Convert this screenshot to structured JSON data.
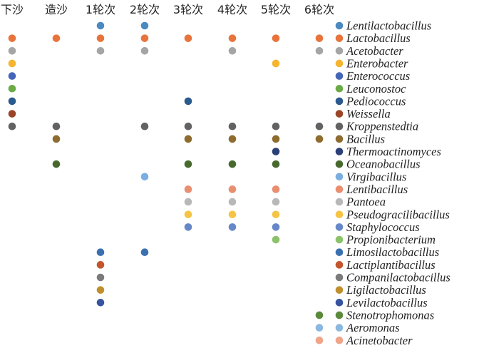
{
  "chart_data": {
    "type": "scatter",
    "title": "",
    "categories": [
      "下沙",
      "造沙",
      "1轮次",
      "2轮次",
      "3轮次",
      "4轮次",
      "5轮次",
      "6轮次"
    ],
    "series": [
      {
        "name": "Lentilactobacillus",
        "color": "#4a8ac0",
        "present": [
          "1轮次",
          "2轮次"
        ]
      },
      {
        "name": "Lactobacillus",
        "color": "#e8743b",
        "present": [
          "下沙",
          "造沙",
          "1轮次",
          "2轮次",
          "3轮次",
          "4轮次",
          "5轮次",
          "6轮次"
        ]
      },
      {
        "name": "Acetobacter",
        "color": "#a5a5a5",
        "present": [
          "下沙",
          "1轮次",
          "2轮次",
          "4轮次",
          "6轮次"
        ]
      },
      {
        "name": "Enterobacter",
        "color": "#f5b530",
        "present": [
          "下沙",
          "5轮次"
        ]
      },
      {
        "name": "Enterococcus",
        "color": "#4566b8",
        "present": [
          "下沙"
        ]
      },
      {
        "name": "Leuconostoc",
        "color": "#6aab46",
        "present": [
          "下沙"
        ]
      },
      {
        "name": "Pediococcus",
        "color": "#2a5a8e",
        "present": [
          "下沙",
          "3轮次"
        ]
      },
      {
        "name": "Weissella",
        "color": "#9b4528",
        "present": [
          "下沙"
        ]
      },
      {
        "name": "Kroppenstedtia",
        "color": "#626262",
        "present": [
          "下沙",
          "造沙",
          "2轮次",
          "3轮次",
          "4轮次",
          "5轮次",
          "6轮次"
        ]
      },
      {
        "name": "Bacillus",
        "color": "#8e6b2e",
        "present": [
          "造沙",
          "3轮次",
          "4轮次",
          "5轮次",
          "6轮次"
        ]
      },
      {
        "name": "Thermoactinomyces",
        "color": "#2b3f78",
        "present": [
          "5轮次"
        ]
      },
      {
        "name": "Oceanobacillus",
        "color": "#47692e",
        "present": [
          "造沙",
          "3轮次",
          "4轮次",
          "5轮次"
        ]
      },
      {
        "name": "Virgibacillus",
        "color": "#7baee0",
        "present": [
          "2轮次"
        ]
      },
      {
        "name": "Lentibacillus",
        "color": "#ea8e70",
        "present": [
          "3轮次",
          "4轮次",
          "5轮次"
        ]
      },
      {
        "name": "Pantoea",
        "color": "#b8b8b8",
        "present": [
          "3轮次",
          "4轮次",
          "5轮次"
        ]
      },
      {
        "name": "Pseudogracilibacillus",
        "color": "#f6c445",
        "present": [
          "3轮次",
          "4轮次",
          "5轮次"
        ]
      },
      {
        "name": "Staphylococcus",
        "color": "#6788c8",
        "present": [
          "3轮次",
          "4轮次",
          "5轮次"
        ]
      },
      {
        "name": "Propionibacterium",
        "color": "#8cc26a",
        "present": [
          "5轮次"
        ]
      },
      {
        "name": "Limosilactobacillus",
        "color": "#3a70b0",
        "present": [
          "1轮次",
          "2轮次"
        ]
      },
      {
        "name": "Lactiplantibacillus",
        "color": "#c4552c",
        "present": [
          "1轮次"
        ]
      },
      {
        "name": "Companilactobacillus",
        "color": "#7b7b7b",
        "present": [
          "1轮次"
        ]
      },
      {
        "name": "Ligilactobacillus",
        "color": "#c0902e",
        "present": [
          "1轮次"
        ]
      },
      {
        "name": "Levilactobacillus",
        "color": "#3553a0",
        "present": [
          "1轮次"
        ]
      },
      {
        "name": "Stenotrophomonas",
        "color": "#5a8a3a",
        "present": [
          "6轮次"
        ]
      },
      {
        "name": "Aeromonas",
        "color": "#8ab8e0",
        "present": [
          "6轮次"
        ]
      },
      {
        "name": "Acinetobacter",
        "color": "#f0a488",
        "present": [
          "6轮次"
        ]
      }
    ],
    "legend": "right"
  }
}
